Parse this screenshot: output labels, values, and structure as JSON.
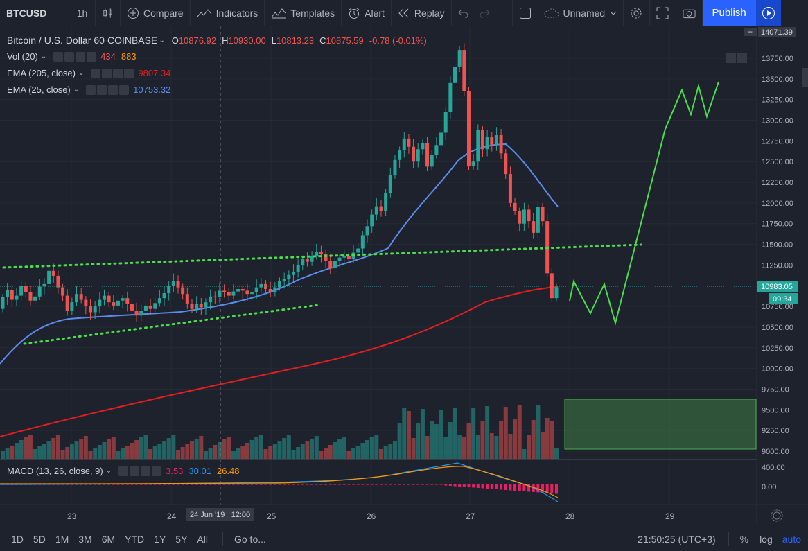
{
  "toolbar": {
    "symbol": "BTCUSD",
    "interval": "1h",
    "compare": "Compare",
    "indicators": "Indicators",
    "templates": "Templates",
    "alert": "Alert",
    "replay": "Replay",
    "layout_name": "Unnamed",
    "publish": "Publish"
  },
  "legend": {
    "title": "Bitcoin / U.S. Dollar",
    "interval": "60",
    "exchange": "COINBASE",
    "o_label": "O",
    "o_value": "10876.92",
    "h_label": "H",
    "h_value": "10930.00",
    "l_label": "L",
    "l_value": "10813.23",
    "c_label": "C",
    "c_value": "10875.59",
    "change": "-0.78 (-0.01%)",
    "vol_name": "Vol (20)",
    "vol_v1": "434",
    "vol_v2": "883",
    "ema205_name": "EMA (205, close)",
    "ema205_value": "9807.34",
    "ema25_name": "EMA (25, close)",
    "ema25_value": "10753.32",
    "macd_name": "MACD (13, 26, close, 9)",
    "macd_v1": "3.53",
    "macd_v2": "30.01",
    "macd_v3": "26.48"
  },
  "price_axis": {
    "ticks": [
      "13750.00",
      "13500.00",
      "13250.00",
      "13000.00",
      "12750.00",
      "12500.00",
      "12250.00",
      "12000.00",
      "11750.00",
      "11500.00",
      "11250.00",
      "10750.00",
      "10500.00",
      "10250.00",
      "10000.00",
      "9750.00",
      "9500.00",
      "9250.00",
      "9000.00"
    ],
    "top_label": "14071.39",
    "last_price": "10983.05",
    "countdown": "09:34",
    "macd_ticks": [
      "400.00",
      "0.00"
    ]
  },
  "time_axis": {
    "labels": [
      "23",
      "24",
      "25",
      "26",
      "27",
      "28",
      "29"
    ],
    "crosshair_label": "24 Jun '19   12:00"
  },
  "bottom": {
    "ranges": [
      "1D",
      "5D",
      "1M",
      "3M",
      "6M",
      "YTD",
      "1Y",
      "5Y",
      "All"
    ],
    "goto": "Go to...",
    "clock": "21:50:25 (UTC+3)",
    "percent": "%",
    "log": "log",
    "auto": "auto"
  },
  "colors": {
    "up": "#26a69a",
    "down": "#ef5350",
    "ema205": "#e91e1e",
    "ema25": "#5b8def",
    "drawing": "#4ade4a",
    "accent": "#2962ff"
  },
  "chart_data": {
    "type": "candlestick",
    "y_range": [
      8950,
      14071.39
    ],
    "candles": [
      [
        10720,
        10860
      ],
      [
        10860,
        10950
      ],
      [
        10950,
        10830
      ],
      [
        10830,
        10880
      ],
      [
        10880,
        11000
      ],
      [
        11000,
        10920
      ],
      [
        10920,
        10820
      ],
      [
        10820,
        10870
      ],
      [
        10870,
        10990
      ],
      [
        10990,
        11020
      ],
      [
        11020,
        11180
      ],
      [
        11180,
        11120
      ],
      [
        11120,
        10980
      ],
      [
        10980,
        10880
      ],
      [
        10880,
        10700
      ],
      [
        10700,
        10800
      ],
      [
        10800,
        10900
      ],
      [
        10900,
        10830
      ],
      [
        10830,
        10750
      ],
      [
        10750,
        10680
      ],
      [
        10680,
        10750
      ],
      [
        10750,
        10830
      ],
      [
        10830,
        10880
      ],
      [
        10880,
        10800
      ],
      [
        10800,
        10760
      ],
      [
        10760,
        10820
      ],
      [
        10820,
        10850
      ],
      [
        10850,
        10780
      ],
      [
        10780,
        10700
      ],
      [
        10700,
        10640
      ],
      [
        10640,
        10700
      ],
      [
        10700,
        10760
      ],
      [
        10760,
        10720
      ],
      [
        10720,
        10790
      ],
      [
        10790,
        10850
      ],
      [
        10850,
        10910
      ],
      [
        10910,
        11000
      ],
      [
        11000,
        11060
      ],
      [
        11060,
        10980
      ],
      [
        10980,
        10900
      ],
      [
        10900,
        10780
      ],
      [
        10780,
        10720
      ],
      [
        10720,
        10780
      ],
      [
        10780,
        10740
      ],
      [
        10740,
        10800
      ],
      [
        10800,
        10870
      ],
      [
        10870,
        10860
      ],
      [
        10860,
        10940
      ],
      [
        10940,
        10920
      ],
      [
        10920,
        10880
      ],
      [
        10880,
        10930
      ],
      [
        10930,
        10960
      ],
      [
        10960,
        10940
      ],
      [
        10940,
        10900
      ],
      [
        10900,
        10920
      ],
      [
        10920,
        10980
      ],
      [
        10980,
        11020
      ],
      [
        11020,
        10960
      ],
      [
        10960,
        10920
      ],
      [
        10920,
        10980
      ],
      [
        10980,
        11060
      ],
      [
        11060,
        11080
      ],
      [
        11080,
        11130
      ],
      [
        11130,
        11170
      ],
      [
        11170,
        11250
      ],
      [
        11250,
        11320
      ],
      [
        11320,
        11290
      ],
      [
        11290,
        11360
      ],
      [
        11360,
        11410
      ],
      [
        11410,
        11380
      ],
      [
        11380,
        11300
      ],
      [
        11300,
        11220
      ],
      [
        11220,
        11300
      ],
      [
        11300,
        11340
      ],
      [
        11340,
        11360
      ],
      [
        11360,
        11320
      ],
      [
        11320,
        11400
      ],
      [
        11400,
        11450
      ],
      [
        11450,
        11610
      ],
      [
        11610,
        11720
      ],
      [
        11720,
        11860
      ],
      [
        11860,
        11960
      ],
      [
        11960,
        11900
      ],
      [
        11900,
        12120
      ],
      [
        12120,
        12340
      ],
      [
        12340,
        12520
      ],
      [
        12520,
        12640
      ],
      [
        12640,
        12780
      ],
      [
        12780,
        12680
      ],
      [
        12680,
        12500
      ],
      [
        12500,
        12650
      ],
      [
        12650,
        12720
      ],
      [
        12720,
        12440
      ],
      [
        12440,
        12580
      ],
      [
        12580,
        12700
      ],
      [
        12700,
        12850
      ],
      [
        12850,
        13100
      ],
      [
        13100,
        13450
      ],
      [
        13450,
        13650
      ],
      [
        13650,
        13850
      ],
      [
        13850,
        13350
      ],
      [
        13350,
        12450
      ],
      [
        12450,
        12500
      ],
      [
        12500,
        12880
      ],
      [
        12880,
        12650
      ],
      [
        12650,
        12800
      ],
      [
        12800,
        12700
      ],
      [
        12700,
        12820
      ],
      [
        12820,
        12600
      ],
      [
        12600,
        12350
      ],
      [
        12350,
        12000
      ],
      [
        12000,
        11900
      ],
      [
        11900,
        11750
      ],
      [
        11750,
        11920
      ],
      [
        11920,
        11780
      ],
      [
        11780,
        11640
      ],
      [
        11640,
        11950
      ],
      [
        11950,
        11780
      ],
      [
        11780,
        11150
      ],
      [
        11150,
        10850
      ],
      [
        10850,
        10983
      ]
    ]
  }
}
